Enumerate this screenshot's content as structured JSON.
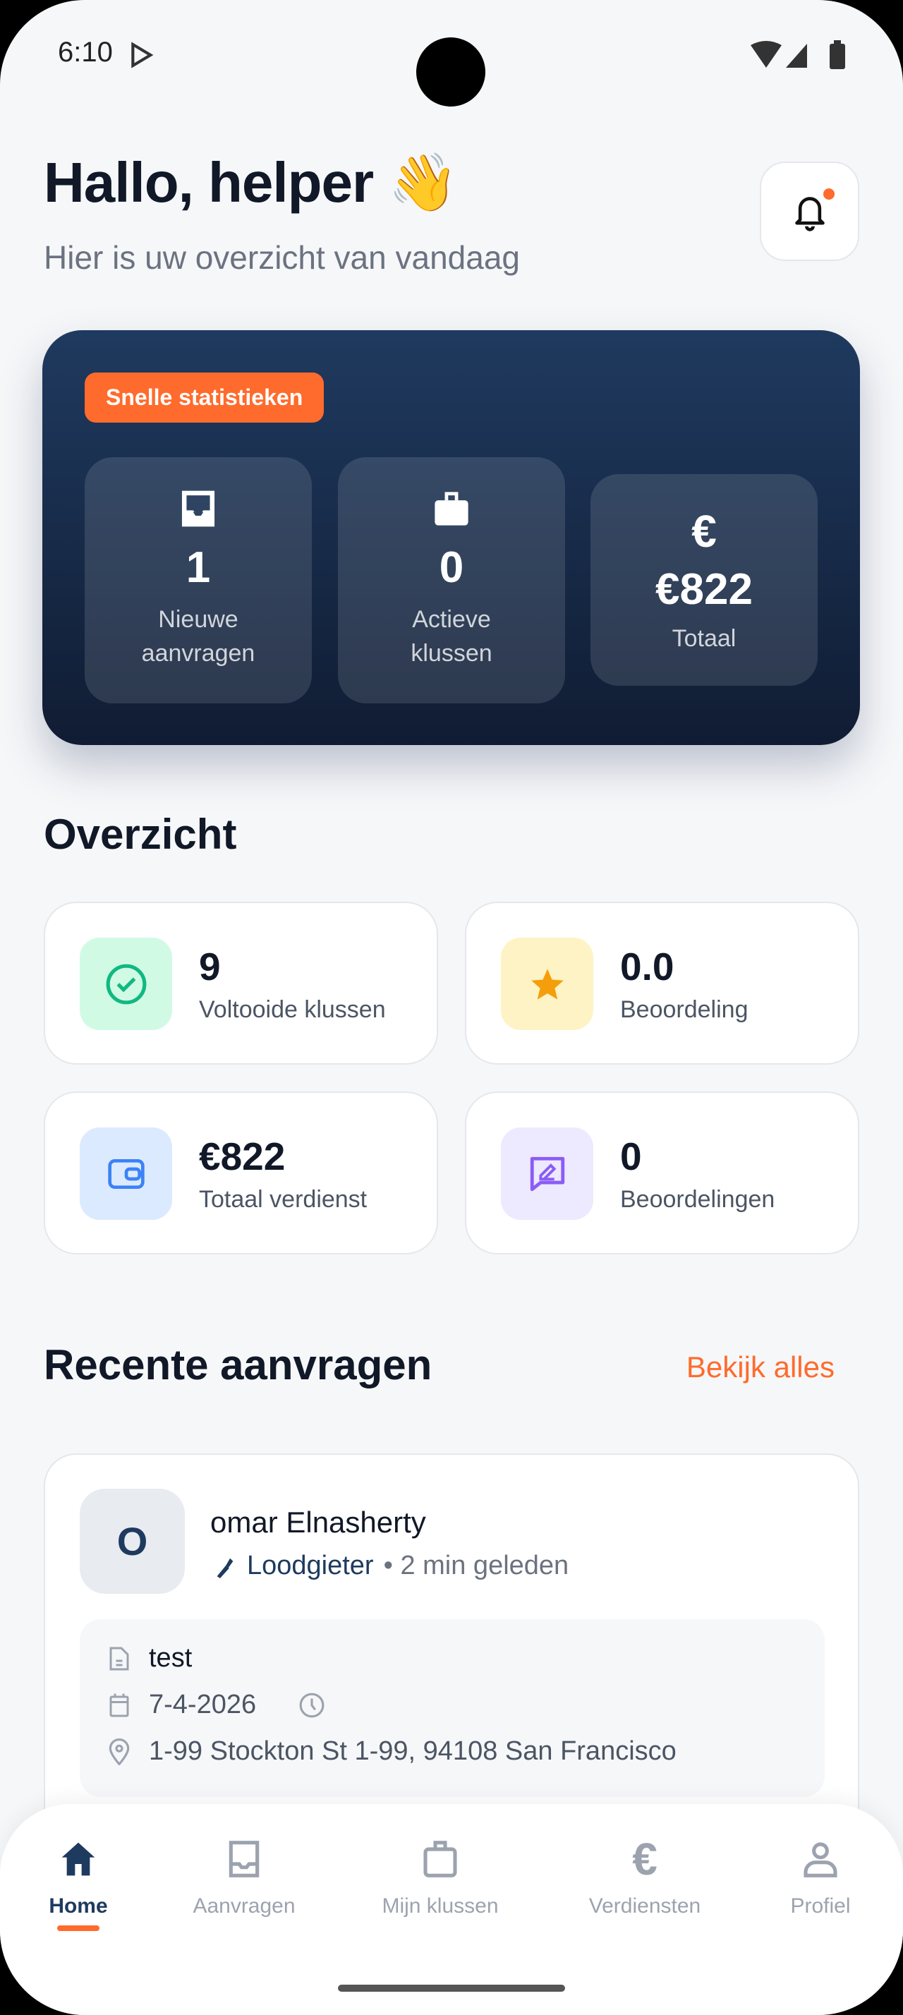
{
  "status_bar": {
    "time": "6:10"
  },
  "header": {
    "greeting": "Hallo, helper 👋",
    "subtitle": "Hier is uw overzicht van vandaag"
  },
  "stats": {
    "badge": "Snelle statistieken",
    "tiles": [
      {
        "icon": "inbox-icon",
        "value": "1",
        "label": "Nieuwe aanvragen"
      },
      {
        "icon": "briefcase-icon",
        "value": "0",
        "label": "Actieve klussen"
      },
      {
        "icon": "euro-icon",
        "value": "€822",
        "label": "Totaal"
      }
    ]
  },
  "overview": {
    "title": "Overzicht",
    "cards": [
      {
        "icon": "check-circle-icon",
        "value": "9",
        "label": "Voltooide klussen",
        "color": "#10b981",
        "bg": "#d1fae5"
      },
      {
        "icon": "star-icon",
        "value": "0.0",
        "label": "Beoordeling",
        "color": "#f59e0b",
        "bg": "#fdf3c4"
      },
      {
        "icon": "wallet-icon",
        "value": "€822",
        "label": "Totaal verdienst",
        "color": "#3b82f6",
        "bg": "#dbeafe"
      },
      {
        "icon": "review-icon",
        "value": "0",
        "label": "Beoordelingen",
        "color": "#8b5cf6",
        "bg": "#ede9fe"
      }
    ]
  },
  "recent": {
    "title": "Recente aanvragen",
    "see_all": "Bekijk alles",
    "requests": [
      {
        "initial": "O",
        "name": "omar Elnasherty",
        "category": "Loodgieter",
        "time": "• 2 min geleden",
        "description": "test",
        "date": "7-4-2026",
        "address": "1-99 Stockton St 1-99, 94108 San Francisco"
      }
    ]
  },
  "nav": {
    "items": [
      {
        "label": "Home",
        "icon": "home-icon",
        "active": true
      },
      {
        "label": "Aanvragen",
        "icon": "inbox-icon"
      },
      {
        "label": "Mijn klussen",
        "icon": "briefcase-icon"
      },
      {
        "label": "Verdiensten",
        "icon": "euro-icon"
      },
      {
        "label": "Profiel",
        "icon": "user-icon"
      }
    ]
  },
  "colors": {
    "accent": "#ff6b2c",
    "primary": "#1e3a5f"
  }
}
